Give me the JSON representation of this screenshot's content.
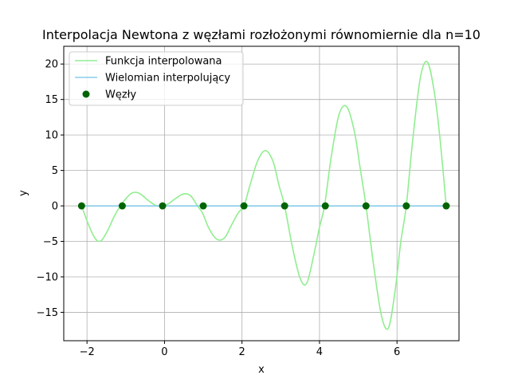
{
  "chart_data": {
    "type": "line",
    "title": "Interpolacja Newtona z węzłami rozłożonymi równomiernie dla n=10",
    "xlabel": "x",
    "ylabel": "y",
    "xlim": [
      -2.6,
      7.6
    ],
    "ylim": [
      -19,
      22.5
    ],
    "xticks": [
      -2,
      0,
      2,
      4,
      6
    ],
    "yticks": [
      -15,
      -10,
      -5,
      0,
      5,
      10,
      15,
      20
    ],
    "xtick_labels": [
      "−2",
      "0",
      "2",
      "4",
      "6"
    ],
    "ytick_labels": [
      "−15",
      "−10",
      "−5",
      "0",
      "5",
      "10",
      "15",
      "20"
    ],
    "grid": true,
    "legend": {
      "position": "top-left",
      "entries": [
        {
          "label": "Funkcja interpolowana",
          "kind": "line",
          "color": "#90ee90"
        },
        {
          "label": "Wielomian interpolujący",
          "kind": "line",
          "color": "#87ceeb"
        },
        {
          "label": "Węzły",
          "kind": "marker",
          "color": "#006400"
        }
      ]
    },
    "series": [
      {
        "name": "Funkcja interpolowana",
        "kind": "line",
        "color": "#90ee90",
        "x": [
          -2.14,
          -1.95,
          -1.8,
          -1.7,
          -1.6,
          -1.45,
          -1.3,
          -1.14,
          -1.0,
          -0.85,
          -0.72,
          -0.6,
          -0.45,
          -0.3,
          -0.18,
          -0.05,
          0.1,
          0.3,
          0.5,
          0.68,
          0.85,
          0.98,
          1.15,
          1.35,
          1.55,
          1.72,
          1.9,
          2.05,
          2.2,
          2.4,
          2.6,
          2.8,
          2.95,
          3.1,
          3.3,
          3.5,
          3.67,
          3.85,
          4.0,
          4.13,
          4.3,
          4.5,
          4.7,
          4.9,
          5.05,
          5.2,
          5.4,
          5.6,
          5.78,
          5.95,
          6.1,
          6.24,
          6.4,
          6.6,
          6.78,
          6.95,
          7.1,
          7.27
        ],
        "y": [
          0,
          -2.8,
          -4.5,
          -5.0,
          -4.7,
          -3.3,
          -1.5,
          0,
          1.0,
          1.8,
          1.9,
          1.6,
          0.9,
          0.3,
          0,
          0,
          0.3,
          1.1,
          1.7,
          1.4,
          0,
          -1.0,
          -3.2,
          -4.7,
          -4.5,
          -2.8,
          -1.0,
          0,
          2.8,
          6.3,
          7.8,
          6.3,
          3.0,
          0,
          -5.8,
          -10.2,
          -10.9,
          -7.0,
          -3.0,
          0,
          6.8,
          12.8,
          14.0,
          10.5,
          5.3,
          0,
          -8.5,
          -15.5,
          -17.2,
          -12.0,
          -5.0,
          0,
          9.0,
          18.0,
          20.3,
          16.5,
          10.0,
          0
        ]
      },
      {
        "name": "Wielomian interpolujący",
        "kind": "line",
        "color": "#87ceeb",
        "x": [
          -2.14,
          7.27
        ],
        "y": [
          0,
          0
        ]
      },
      {
        "name": "Węzły",
        "kind": "scatter",
        "color": "#006400",
        "x": [
          -2.14,
          -1.09,
          -0.05,
          1.0,
          2.05,
          3.1,
          4.15,
          5.2,
          6.24,
          7.27
        ],
        "y": [
          0,
          0,
          0,
          0,
          0,
          0,
          0,
          0,
          0,
          0
        ]
      }
    ]
  }
}
